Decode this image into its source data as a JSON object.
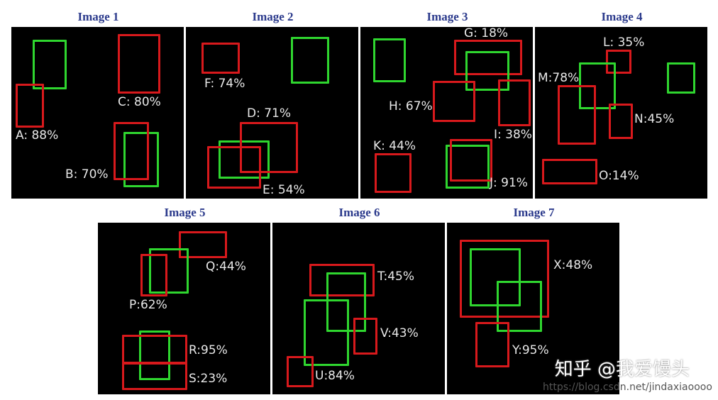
{
  "titles": [
    "Image 1",
    "Image 2",
    "Image 3",
    "Image 4",
    "Image 5",
    "Image 6",
    "Image 7"
  ],
  "labels": {
    "A": "A: 88%",
    "B": "B: 70%",
    "C": "C: 80%",
    "D": "D: 71%",
    "E": "E: 54%",
    "F": "F: 74%",
    "G": "G: 18%",
    "H": "H: 67%",
    "I": "I: 38%",
    "J": "J: 91%",
    "K": "K: 44%",
    "L": "L: 35%",
    "M": "M:78%",
    "N": "N:45%",
    "O": "O:14%",
    "P": "P:62%",
    "Q": "Q:44%",
    "R": "R:95%",
    "S": "S:23%",
    "T": "T:45%",
    "U": "U:84%",
    "V": "V:43%",
    "X": "X:48%",
    "Y": "Y:95%"
  },
  "watermark": {
    "brand": "知乎 @我爱馒头",
    "url": "https://blog.csdn.net/jindaxiaoooo"
  },
  "colors": {
    "prediction": "#d8191c",
    "ground_truth": "#2fd62f",
    "title": "#2b3a8c"
  }
}
